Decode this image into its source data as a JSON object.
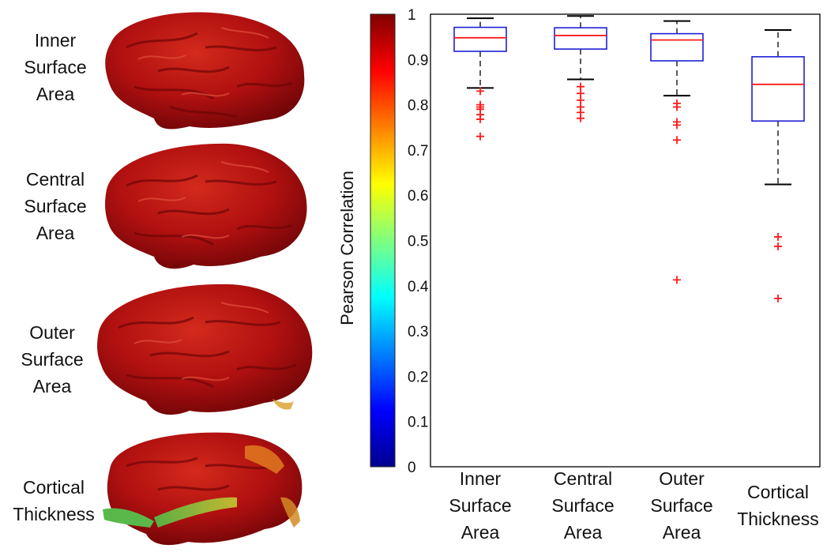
{
  "rows": [
    {
      "label": [
        "Inner",
        "Surface",
        "Area"
      ]
    },
    {
      "label": [
        "Central",
        "Surface",
        "Area"
      ]
    },
    {
      "label": [
        "Outer",
        "Surface",
        "Area"
      ]
    },
    {
      "label": [
        "Cortical",
        "Thickness"
      ]
    }
  ],
  "colors": {
    "brain": "#b01010",
    "brain_dark": "#7a0608",
    "brain_highlight": "#d83a2a",
    "box": "#1f1fd6",
    "median": "#ff1a1a",
    "whisker": "#000000",
    "outlier": "#ff1a1a"
  },
  "chart_data": {
    "type": "boxplot",
    "ylabel": "Pearson Correlation",
    "ylim": [
      0,
      1
    ],
    "yticks": [
      "0",
      "0.1",
      "0.2",
      "0.3",
      "0.4",
      "0.5",
      "0.6",
      "0.7",
      "0.8",
      "0.9",
      "1"
    ],
    "colorbar": {
      "colormap": "jet",
      "range": [
        0,
        1
      ]
    },
    "categories": [
      [
        "Inner",
        "Surface",
        "Area"
      ],
      [
        "Central",
        "Surface",
        "Area"
      ],
      [
        "Outer",
        "Surface",
        "Area"
      ],
      [
        "Cortical",
        "Thickness"
      ]
    ],
    "boxes": [
      {
        "whisker_low": 0.837,
        "q1": 0.918,
        "median": 0.948,
        "q3": 0.971,
        "whisker_high": 0.991,
        "outliers": [
          0.83,
          0.8,
          0.795,
          0.79,
          0.778,
          0.768,
          0.73
        ]
      },
      {
        "whisker_low": 0.856,
        "q1": 0.923,
        "median": 0.953,
        "q3": 0.97,
        "whisker_high": 0.996,
        "outliers": [
          0.84,
          0.825,
          0.81,
          0.795,
          0.783,
          0.77
        ]
      },
      {
        "whisker_low": 0.82,
        "q1": 0.897,
        "median": 0.943,
        "q3": 0.957,
        "whisker_high": 0.985,
        "outliers": [
          0.803,
          0.795,
          0.762,
          0.755,
          0.722,
          0.413
        ]
      },
      {
        "whisker_low": 0.624,
        "q1": 0.764,
        "median": 0.845,
        "q3": 0.906,
        "whisker_high": 0.965,
        "outliers": [
          0.508,
          0.487,
          0.372
        ]
      }
    ]
  }
}
